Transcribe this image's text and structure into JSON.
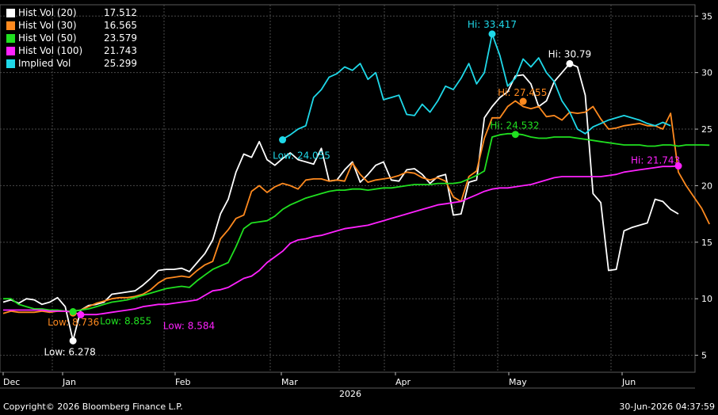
{
  "chart_data": {
    "type": "line",
    "year_label": "2026",
    "x_tick_labels": [
      "Dec",
      "Jan",
      "Feb",
      "Mar",
      "Apr",
      "May",
      "Jun"
    ],
    "y_ticks": [
      5,
      10,
      15,
      20,
      25,
      30,
      35
    ],
    "ylim": [
      3.5,
      36
    ],
    "grid": "dashed",
    "legend_position": "top-left",
    "series": [
      {
        "name": "Hist Vol (20)",
        "last": "17.512",
        "color": "#ffffff",
        "values": [
          9.7,
          9.9,
          9.6,
          10.0,
          9.9,
          9.5,
          9.7,
          10.1,
          9.3,
          6.3,
          9.0,
          9.4,
          9.5,
          9.7,
          10.4,
          10.5,
          10.6,
          10.7,
          11.2,
          11.8,
          12.5,
          12.6,
          12.6,
          12.7,
          12.4,
          13.2,
          14.0,
          15.2,
          17.5,
          18.8,
          21.2,
          22.8,
          22.5,
          23.9,
          22.3,
          21.8,
          22.4,
          22.9,
          22.3,
          22.1,
          21.9,
          23.3,
          20.4,
          20.5,
          21.4,
          22.1,
          20.3,
          21.0,
          21.8,
          22.1,
          20.5,
          20.4,
          21.4,
          21.5,
          21.0,
          20.2,
          20.8,
          21.0,
          17.4,
          17.5,
          20.3,
          20.5,
          26.0,
          27.0,
          27.8,
          28.3,
          29.7,
          29.8,
          29.0,
          27.0,
          27.5,
          29.2,
          30.0,
          30.8,
          30.5,
          28.0,
          19.3,
          18.5,
          12.5,
          12.6,
          16.0,
          16.3,
          16.5,
          16.7,
          18.8,
          18.6,
          17.9,
          17.5
        ]
      },
      {
        "name": "Hist Vol (30)",
        "last": "16.565",
        "color": "#ff8a1f",
        "values": [
          8.7,
          8.9,
          8.8,
          8.8,
          8.8,
          8.9,
          8.8,
          8.9,
          8.9,
          8.9,
          9.0,
          9.3,
          9.6,
          9.8,
          10.0,
          10.1,
          10.1,
          10.2,
          10.4,
          10.8,
          11.4,
          11.8,
          11.9,
          12.0,
          11.9,
          12.5,
          13.0,
          13.3,
          15.3,
          16.1,
          17.1,
          17.4,
          19.5,
          20.0,
          19.4,
          19.9,
          20.2,
          20.0,
          19.7,
          20.5,
          20.6,
          20.6,
          20.4,
          20.5,
          20.4,
          22.0,
          21.0,
          20.3,
          20.5,
          20.6,
          20.7,
          20.9,
          21.2,
          21.1,
          20.7,
          20.5,
          20.7,
          20.4,
          19.0,
          18.6,
          20.8,
          21.3,
          24.2,
          26.0,
          26.0,
          27.0,
          27.5,
          27.0,
          26.8,
          27.0,
          26.1,
          26.2,
          25.8,
          26.5,
          26.4,
          26.5,
          27.0,
          25.9,
          25.0,
          25.1,
          25.3,
          25.4,
          25.5,
          25.3,
          25.3,
          25.0,
          26.4,
          21.2,
          20.0,
          19.0,
          18.0,
          16.6
        ]
      },
      {
        "name": "Hist Vol (50)",
        "last": "23.579",
        "color": "#20e020",
        "values": [
          10.0,
          10.0,
          9.5,
          9.3,
          9.1,
          9.1,
          9.0,
          9.0,
          8.9,
          8.9,
          9.0,
          9.1,
          9.3,
          9.5,
          9.7,
          9.8,
          9.9,
          10.1,
          10.3,
          10.5,
          10.7,
          10.9,
          11.0,
          11.1,
          11.0,
          11.6,
          12.1,
          12.6,
          12.9,
          13.2,
          14.6,
          16.2,
          16.7,
          16.8,
          16.9,
          17.3,
          17.9,
          18.3,
          18.6,
          18.9,
          19.1,
          19.3,
          19.5,
          19.6,
          19.6,
          19.7,
          19.7,
          19.6,
          19.7,
          19.8,
          19.8,
          19.9,
          20.0,
          20.1,
          20.1,
          20.1,
          20.2,
          20.2,
          20.2,
          20.3,
          20.6,
          20.9,
          21.3,
          24.3,
          24.5,
          24.6,
          24.6,
          24.5,
          24.3,
          24.2,
          24.2,
          24.3,
          24.3,
          24.3,
          24.2,
          24.1,
          24.0,
          23.9,
          23.8,
          23.7,
          23.6,
          23.6,
          23.6,
          23.5,
          23.5,
          23.6,
          23.6,
          23.5,
          23.6,
          23.6,
          23.6,
          23.579
        ]
      },
      {
        "name": "Hist Vol (100)",
        "last": "21.743",
        "color": "#ff22ff",
        "values": [
          9.0,
          9.0,
          9.0,
          9.0,
          9.0,
          9.0,
          8.9,
          8.9,
          8.9,
          8.8,
          8.6,
          8.6,
          8.6,
          8.7,
          8.8,
          8.9,
          9.0,
          9.1,
          9.3,
          9.4,
          9.5,
          9.5,
          9.6,
          9.7,
          9.8,
          9.9,
          10.3,
          10.7,
          10.8,
          11.0,
          11.4,
          11.8,
          12.0,
          12.5,
          13.2,
          13.7,
          14.2,
          14.9,
          15.2,
          15.3,
          15.5,
          15.6,
          15.8,
          16.0,
          16.2,
          16.3,
          16.4,
          16.5,
          16.7,
          16.9,
          17.1,
          17.3,
          17.5,
          17.7,
          17.9,
          18.1,
          18.3,
          18.4,
          18.5,
          18.6,
          18.9,
          19.2,
          19.5,
          19.7,
          19.8,
          19.8,
          19.9,
          20.0,
          20.1,
          20.3,
          20.5,
          20.7,
          20.8,
          20.8,
          20.8,
          20.8,
          20.8,
          20.8,
          20.9,
          21.0,
          21.2,
          21.3,
          21.4,
          21.5,
          21.6,
          21.7,
          21.7,
          21.743
        ]
      },
      {
        "name": "Implied Vol",
        "last": "25.299",
        "color": "#1fd8e8",
        "start_index": 36,
        "values": [
          24.1,
          24.5,
          25.0,
          25.3,
          27.8,
          28.5,
          29.6,
          29.9,
          30.5,
          30.2,
          30.8,
          29.4,
          30.0,
          27.6,
          27.8,
          28.0,
          26.3,
          26.2,
          27.2,
          26.5,
          27.5,
          28.8,
          28.5,
          29.5,
          30.8,
          29.0,
          30.0,
          33.4,
          31.5,
          28.8,
          29.5,
          31.2,
          30.5,
          31.3,
          30.0,
          29.2,
          27.5,
          26.5,
          25.0,
          24.6,
          25.2,
          25.5,
          25.8,
          26.0,
          26.2,
          26.0,
          25.8,
          25.5,
          25.3,
          25.6,
          25.299
        ]
      }
    ],
    "annotations": [
      {
        "series": 0,
        "kind": "low",
        "label": "Low: 6.278",
        "index": 9,
        "value": 6.278
      },
      {
        "series": 0,
        "kind": "high",
        "label": "Hi: 30.79",
        "index": 73,
        "value": 30.79
      },
      {
        "series": 1,
        "kind": "low",
        "label": "Low: 8.736",
        "index": 9,
        "value": 8.736
      },
      {
        "series": 1,
        "kind": "high",
        "label": "Hi: 27.455",
        "index": 67,
        "value": 27.455
      },
      {
        "series": 2,
        "kind": "low",
        "label": "Low: 8.855",
        "index": 9,
        "value": 8.855
      },
      {
        "series": 2,
        "kind": "high",
        "label": "Hi: 24.532",
        "index": 66,
        "value": 24.532
      },
      {
        "series": 3,
        "kind": "low",
        "label": "Low: 8.584",
        "index": 10,
        "value": 8.584
      },
      {
        "series": 3,
        "kind": "high",
        "label": "Hi: 21.743",
        "index": 87,
        "value": 21.743
      },
      {
        "series": 4,
        "kind": "low",
        "label": "Low: 24.055",
        "index": 0,
        "value": 24.055
      },
      {
        "series": 4,
        "kind": "high",
        "label": "Hi: 33.417",
        "index": 27,
        "value": 33.417
      }
    ]
  },
  "footer": {
    "copyright": "Copyright© 2026 Bloomberg Finance L.P.",
    "timestamp": "30-Jun-2026 04:37:59"
  }
}
